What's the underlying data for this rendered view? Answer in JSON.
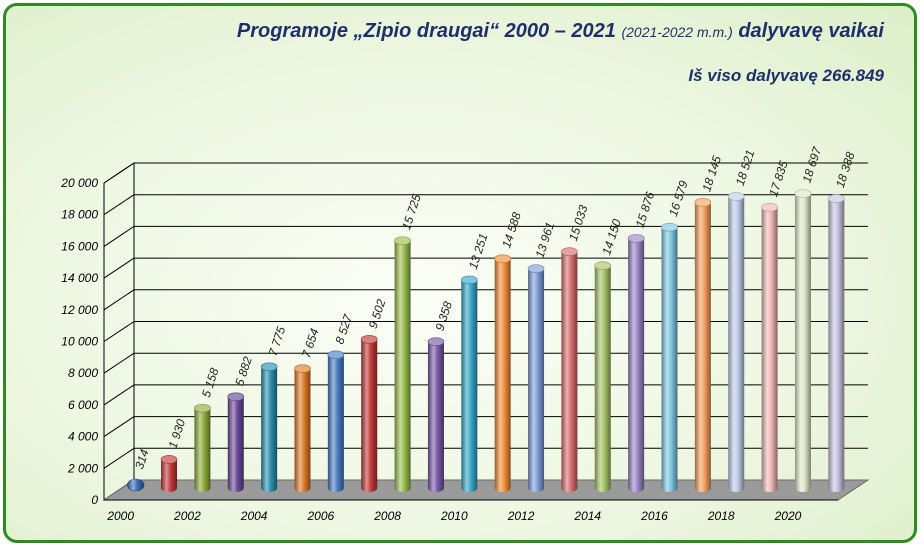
{
  "title": {
    "prefix": "Programoje „Zipio draugai“ 2000 – 2021",
    "school_year": "(2021-2022 m.m.)",
    "suffix": "dalyvavę vaikai",
    "total": "Iš viso dalyvavę 266.849"
  },
  "chart_data": {
    "type": "bar",
    "style": "3d-cylinder",
    "categories": [
      "2000",
      "2001",
      "2002",
      "2003",
      "2004",
      "2005",
      "2006",
      "2007",
      "2008",
      "2009",
      "2010",
      "2011",
      "2012",
      "2013",
      "2014",
      "2015",
      "2016",
      "2017",
      "2018",
      "2019",
      "2020",
      "2021"
    ],
    "values": [
      314,
      1930,
      5158,
      5882,
      7775,
      7654,
      8527,
      9502,
      15725,
      9358,
      13251,
      14588,
      13961,
      15033,
      14150,
      15876,
      16579,
      18145,
      18521,
      17835,
      18697,
      18388
    ],
    "value_labels": [
      "314",
      "1 930",
      "5 158",
      "5 882",
      "7 775",
      "7 654",
      "8 527",
      "9 502",
      "15 725",
      "9 358",
      "13 251",
      "14 588",
      "13 961",
      "15 033",
      "14 150",
      "15 876",
      "16 579",
      "18 145",
      "18 521",
      "17 835",
      "18 697",
      "18 388"
    ],
    "x_tick_labels": [
      "2000",
      "2002",
      "2004",
      "2006",
      "2008",
      "2010",
      "2012",
      "2014",
      "2016",
      "2018",
      "2020"
    ],
    "y_tick_labels": [
      "0",
      "2 000",
      "4 000",
      "6 000",
      "8 000",
      "10 000",
      "12 000",
      "14 000",
      "16 000",
      "18 000",
      "20 000"
    ],
    "ylim": [
      0,
      20000
    ],
    "grid": true,
    "legend": "none",
    "colors": [
      "#3a6fb8",
      "#c23b3b",
      "#8fae3c",
      "#6a4a9a",
      "#2c8fad",
      "#e07a2a",
      "#4a7ec4",
      "#c23b3b",
      "#9bbd4e",
      "#7a5aa8",
      "#38a8c8",
      "#f28f3a",
      "#7f9fd8",
      "#d87070",
      "#a8c468",
      "#9c84c4",
      "#7fc8e0",
      "#f5a060",
      "#c0cce8",
      "#f0b8b8",
      "#e0e8c8",
      "#c8c4e0"
    ]
  }
}
